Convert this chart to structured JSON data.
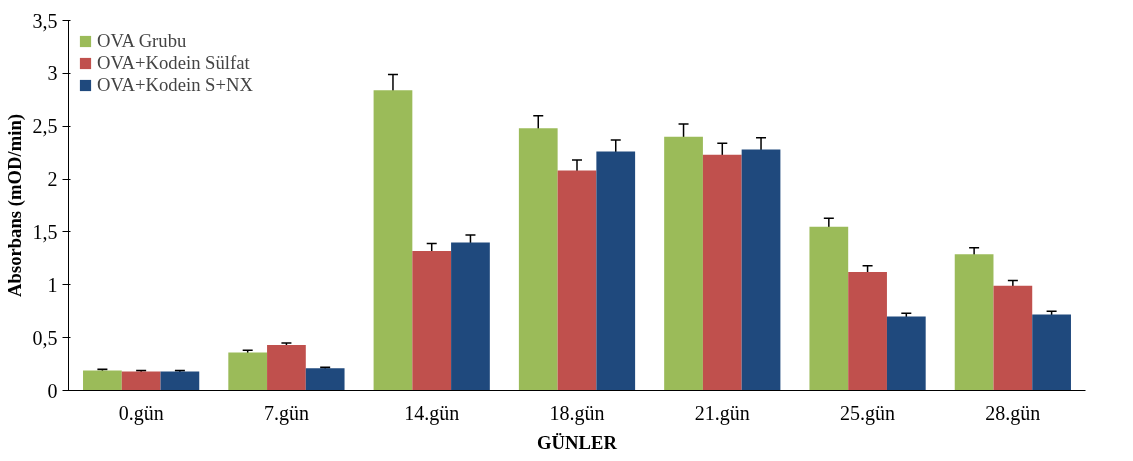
{
  "chart_data": {
    "type": "bar",
    "xlabel": "GÜNLER",
    "ylabel": "Absorbans (mOD/min)",
    "categories": [
      "0.gün",
      "7.gün",
      "14.gün",
      "18.gün",
      "21.gün",
      "25.gün",
      "28.gün"
    ],
    "series": [
      {
        "name": "OVA Grubu",
        "color": "#9bbb59",
        "values": [
          0.19,
          0.36,
          2.84,
          2.48,
          2.4,
          1.55,
          1.29
        ],
        "errors": [
          0.01,
          0.02,
          0.15,
          0.12,
          0.12,
          0.08,
          0.06
        ]
      },
      {
        "name": "OVA+Kodein Sülfat",
        "color": "#c0504d",
        "values": [
          0.18,
          0.43,
          1.32,
          2.08,
          2.23,
          1.12,
          0.99
        ],
        "errors": [
          0.01,
          0.02,
          0.07,
          0.1,
          0.11,
          0.06,
          0.05
        ]
      },
      {
        "name": "OVA+Kodein S+NX",
        "color": "#1f497d",
        "values": [
          0.18,
          0.21,
          1.4,
          2.26,
          2.28,
          0.7,
          0.72
        ],
        "errors": [
          0.01,
          0.01,
          0.07,
          0.11,
          0.11,
          0.03,
          0.03
        ]
      }
    ],
    "ylim": [
      0,
      3.5
    ],
    "yticks": [
      0,
      {
        "value": 0.5,
        "label": "0,5"
      },
      1,
      {
        "value": 1.5,
        "label": "1,5"
      },
      2,
      {
        "value": 2.5,
        "label": "2,5"
      },
      3,
      {
        "value": 3.5,
        "label": "3,5"
      }
    ],
    "grid": false,
    "legend": "top left"
  }
}
